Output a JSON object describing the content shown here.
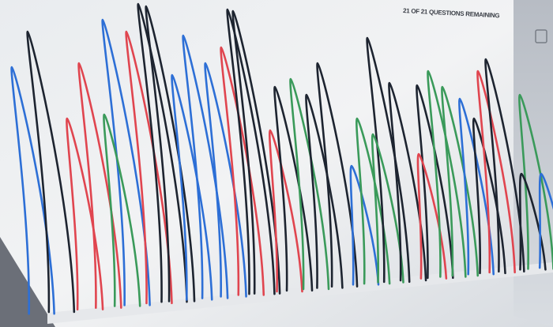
{
  "header": {
    "status": "21 OF 21 QUESTIONS REMAINING"
  }
}
